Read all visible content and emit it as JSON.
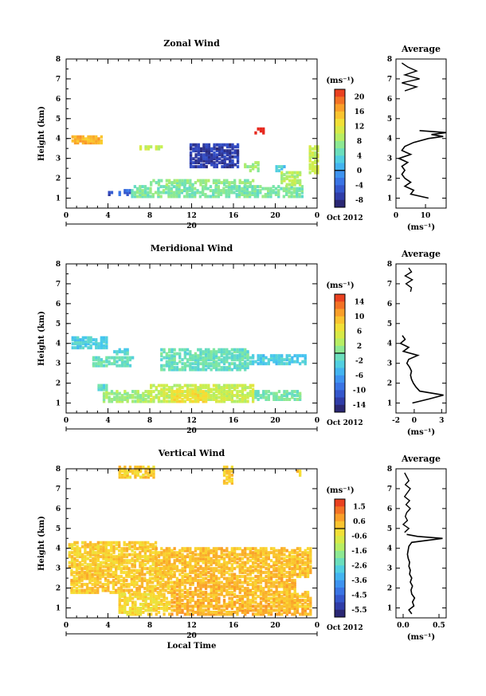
{
  "figure": {
    "date_label": "Oct 2012",
    "day_label": "20",
    "x_label": "Local Time",
    "avg_title": "Average",
    "unit_label": "(ms⁻¹)"
  },
  "chart_data": [
    {
      "type": "heatmap",
      "title": "Zonal Wind",
      "xlabel": "",
      "ylabel": "Height (km)",
      "xlim": [
        0,
        24
      ],
      "ylim": [
        0.5,
        8
      ],
      "xticks": [
        "0",
        "4",
        "8",
        "12",
        "16",
        "20",
        "0"
      ],
      "yticks": [
        "1",
        "2",
        "3",
        "4",
        "5",
        "6",
        "7",
        "8"
      ],
      "colorbar": {
        "ticks": [
          "20",
          "16",
          "12",
          "8",
          "4",
          "0",
          "-4",
          "-8"
        ],
        "range": [
          -10,
          22
        ]
      },
      "regions": [
        {
          "x0": 0.5,
          "x1": 3.5,
          "y0": 3.7,
          "y1": 4.1,
          "value": 16
        },
        {
          "x0": 4.0,
          "x1": 4.5,
          "y0": 1.1,
          "y1": 1.3,
          "value": -6
        },
        {
          "x0": 5.0,
          "x1": 6.2,
          "y0": 1.1,
          "y1": 1.35,
          "value": -4
        },
        {
          "x0": 6.2,
          "x1": 22.5,
          "y0": 1.0,
          "y1": 1.6,
          "value": 6
        },
        {
          "x0": 8.0,
          "x1": 18.0,
          "y0": 1.6,
          "y1": 1.9,
          "value": 7
        },
        {
          "x0": 11.8,
          "x1": 16.5,
          "y0": 2.5,
          "y1": 3.7,
          "value": -7
        },
        {
          "x0": 7.0,
          "x1": 9.5,
          "y0": 3.4,
          "y1": 3.6,
          "value": 10
        },
        {
          "x0": 17.0,
          "x1": 18.5,
          "y0": 2.3,
          "y1": 2.8,
          "value": 8
        },
        {
          "x0": 18.0,
          "x1": 19.0,
          "y0": 4.2,
          "y1": 4.4,
          "value": 22
        },
        {
          "x0": 20.5,
          "x1": 22.5,
          "y0": 1.6,
          "y1": 2.3,
          "value": 9
        },
        {
          "x0": 23.2,
          "x1": 24.0,
          "y0": 2.2,
          "y1": 3.6,
          "value": 10
        },
        {
          "x0": 20.0,
          "x1": 21.0,
          "y0": 2.3,
          "y1": 2.6,
          "value": 3
        }
      ],
      "average_profile": {
        "xlim": [
          0,
          17
        ],
        "xticks": [
          "0",
          "10"
        ],
        "height": [
          1.0,
          1.2,
          1.4,
          1.6,
          1.8,
          2.0,
          2.2,
          2.4,
          2.6,
          2.8,
          3.0,
          3.2,
          3.4,
          3.6,
          3.8,
          4.0,
          4.1,
          4.2,
          4.3,
          4.4
        ],
        "value": [
          11,
          5,
          6,
          3,
          5,
          3,
          2,
          3,
          2,
          4,
          1,
          5,
          2,
          3,
          6,
          11,
          16,
          12,
          17,
          8
        ],
        "upper_height": [
          6.4,
          6.6,
          6.8,
          7.0,
          7.2,
          7.4,
          7.6,
          7.8
        ],
        "upper_value": [
          3,
          7,
          2,
          8,
          3,
          7,
          4,
          2
        ]
      }
    },
    {
      "type": "heatmap",
      "title": "Meridional Wind",
      "xlabel": "",
      "ylabel": "Height (km)",
      "xlim": [
        0,
        24
      ],
      "ylim": [
        0.5,
        8
      ],
      "xticks": [
        "0",
        "4",
        "8",
        "12",
        "16",
        "20",
        "0"
      ],
      "yticks": [
        "1",
        "2",
        "3",
        "4",
        "5",
        "6",
        "7",
        "8"
      ],
      "colorbar": {
        "ticks": [
          "14",
          "10",
          "6",
          "2",
          "-2",
          "-6",
          "-10",
          "-14"
        ],
        "range": [
          -16,
          16
        ]
      },
      "regions": [
        {
          "x0": 0.5,
          "x1": 4.0,
          "y0": 3.7,
          "y1": 4.2,
          "value": -3
        },
        {
          "x0": 2.5,
          "x1": 6.5,
          "y0": 2.8,
          "y1": 3.3,
          "value": -1
        },
        {
          "x0": 4.5,
          "x1": 6.0,
          "y0": 3.4,
          "y1": 3.7,
          "value": -2
        },
        {
          "x0": 9.0,
          "x1": 17.5,
          "y0": 2.6,
          "y1": 3.7,
          "value": -1
        },
        {
          "x0": 17.5,
          "x1": 23.0,
          "y0": 2.9,
          "y1": 3.4,
          "value": -3
        },
        {
          "x0": 3.5,
          "x1": 8.0,
          "y0": 1.0,
          "y1": 1.6,
          "value": 2
        },
        {
          "x0": 8.0,
          "x1": 18.0,
          "y0": 1.0,
          "y1": 1.9,
          "value": 4
        },
        {
          "x0": 18.0,
          "x1": 22.5,
          "y0": 1.1,
          "y1": 1.6,
          "value": 0
        },
        {
          "x0": 10.0,
          "x1": 13.5,
          "y0": 1.0,
          "y1": 1.6,
          "value": 7
        },
        {
          "x0": 3.0,
          "x1": 4.0,
          "y0": 1.6,
          "y1": 1.9,
          "value": -2
        }
      ],
      "average_profile": {
        "xlim": [
          -2,
          3.5
        ],
        "xticks": [
          "-2",
          "0",
          "3"
        ],
        "height": [
          1.0,
          1.2,
          1.4,
          1.6,
          1.8,
          2.0,
          2.2,
          2.4,
          2.6,
          2.8,
          3.0,
          3.2,
          3.4,
          3.6,
          3.8,
          4.0,
          4.2,
          4.4
        ],
        "value": [
          -0.2,
          1.6,
          3.2,
          0.6,
          0.2,
          -0.1,
          -0.3,
          -0.4,
          -0.3,
          -0.5,
          -0.8,
          -0.6,
          0.4,
          -1.2,
          -0.6,
          -1.5,
          -1.0,
          -1.3
        ],
        "upper_height": [
          6.6,
          6.8,
          7.0,
          7.2,
          7.4,
          7.6,
          7.8
        ],
        "upper_value": [
          -0.4,
          -0.3,
          -0.9,
          -0.2,
          -1.0,
          -0.3,
          -0.6
        ]
      }
    },
    {
      "type": "heatmap",
      "title": "Vertical Wind",
      "xlabel": "Local Time",
      "ylabel": "Height (km)",
      "xlim": [
        0,
        24
      ],
      "ylim": [
        0.5,
        8
      ],
      "xticks": [
        "0",
        "4",
        "8",
        "12",
        "16",
        "20",
        "0"
      ],
      "yticks": [
        "1",
        "2",
        "3",
        "4",
        "5",
        "6",
        "7",
        "8"
      ],
      "colorbar": {
        "ticks": [
          "1.5",
          "0.6",
          "-0.6",
          "-1.6",
          "-2.6",
          "-3.6",
          "-4.5",
          "-5.5"
        ],
        "range": [
          -6.0,
          2.0
        ]
      },
      "regions": [
        {
          "x0": 0.2,
          "x1": 8.5,
          "y0": 3.0,
          "y1": 4.3,
          "value": 0.1
        },
        {
          "x0": 8.5,
          "x1": 23.5,
          "y0": 2.5,
          "y1": 4.0,
          "value": 0.3
        },
        {
          "x0": 0.4,
          "x1": 10.0,
          "y0": 1.7,
          "y1": 3.0,
          "value": 0.2
        },
        {
          "x0": 10.0,
          "x1": 22.0,
          "y0": 1.0,
          "y1": 2.5,
          "value": 0.4
        },
        {
          "x0": 5.0,
          "x1": 10.0,
          "y0": 0.6,
          "y1": 1.7,
          "value": -0.1
        },
        {
          "x0": 10.0,
          "x1": 23.5,
          "y0": 0.6,
          "y1": 1.0,
          "value": 0.5
        },
        {
          "x0": 20.0,
          "x1": 23.5,
          "y0": 1.0,
          "y1": 1.8,
          "value": 0.3
        },
        {
          "x0": 15.0,
          "x1": 16.0,
          "y0": 7.2,
          "y1": 8.0,
          "value": 0.1
        },
        {
          "x0": 5.0,
          "x1": 8.5,
          "y0": 7.5,
          "y1": 8.0,
          "value": 0.1
        },
        {
          "x0": 22.0,
          "x1": 22.5,
          "y0": 7.6,
          "y1": 7.8,
          "value": 0.1
        }
      ],
      "average_profile": {
        "xlim": [
          -0.1,
          0.6
        ],
        "xticks": [
          "0.0",
          "0.5"
        ],
        "height": [
          0.7,
          0.9,
          1.1,
          1.3,
          1.5,
          1.7,
          1.9,
          2.1,
          2.3,
          2.5,
          2.7,
          2.9,
          3.1,
          3.3,
          3.5,
          3.7,
          3.9,
          4.1,
          4.3,
          4.5,
          4.6,
          4.7
        ],
        "value": [
          0.12,
          0.08,
          0.15,
          0.13,
          0.16,
          0.12,
          0.11,
          0.13,
          0.1,
          0.12,
          0.09,
          0.1,
          0.08,
          0.09,
          0.07,
          0.06,
          0.07,
          0.08,
          0.12,
          0.55,
          0.2,
          0.05
        ],
        "upper_height": [
          4.8,
          5.0,
          5.2,
          5.4,
          5.6,
          5.8,
          6.0,
          6.2,
          6.4,
          6.6,
          6.8,
          7.0,
          7.2,
          7.4,
          7.6,
          7.8
        ],
        "upper_value": [
          0.02,
          0.08,
          0.0,
          0.06,
          0.03,
          0.05,
          0.1,
          0.04,
          0.09,
          0.02,
          0.06,
          0.1,
          0.03,
          0.08,
          0.05,
          0.02
        ]
      }
    }
  ]
}
